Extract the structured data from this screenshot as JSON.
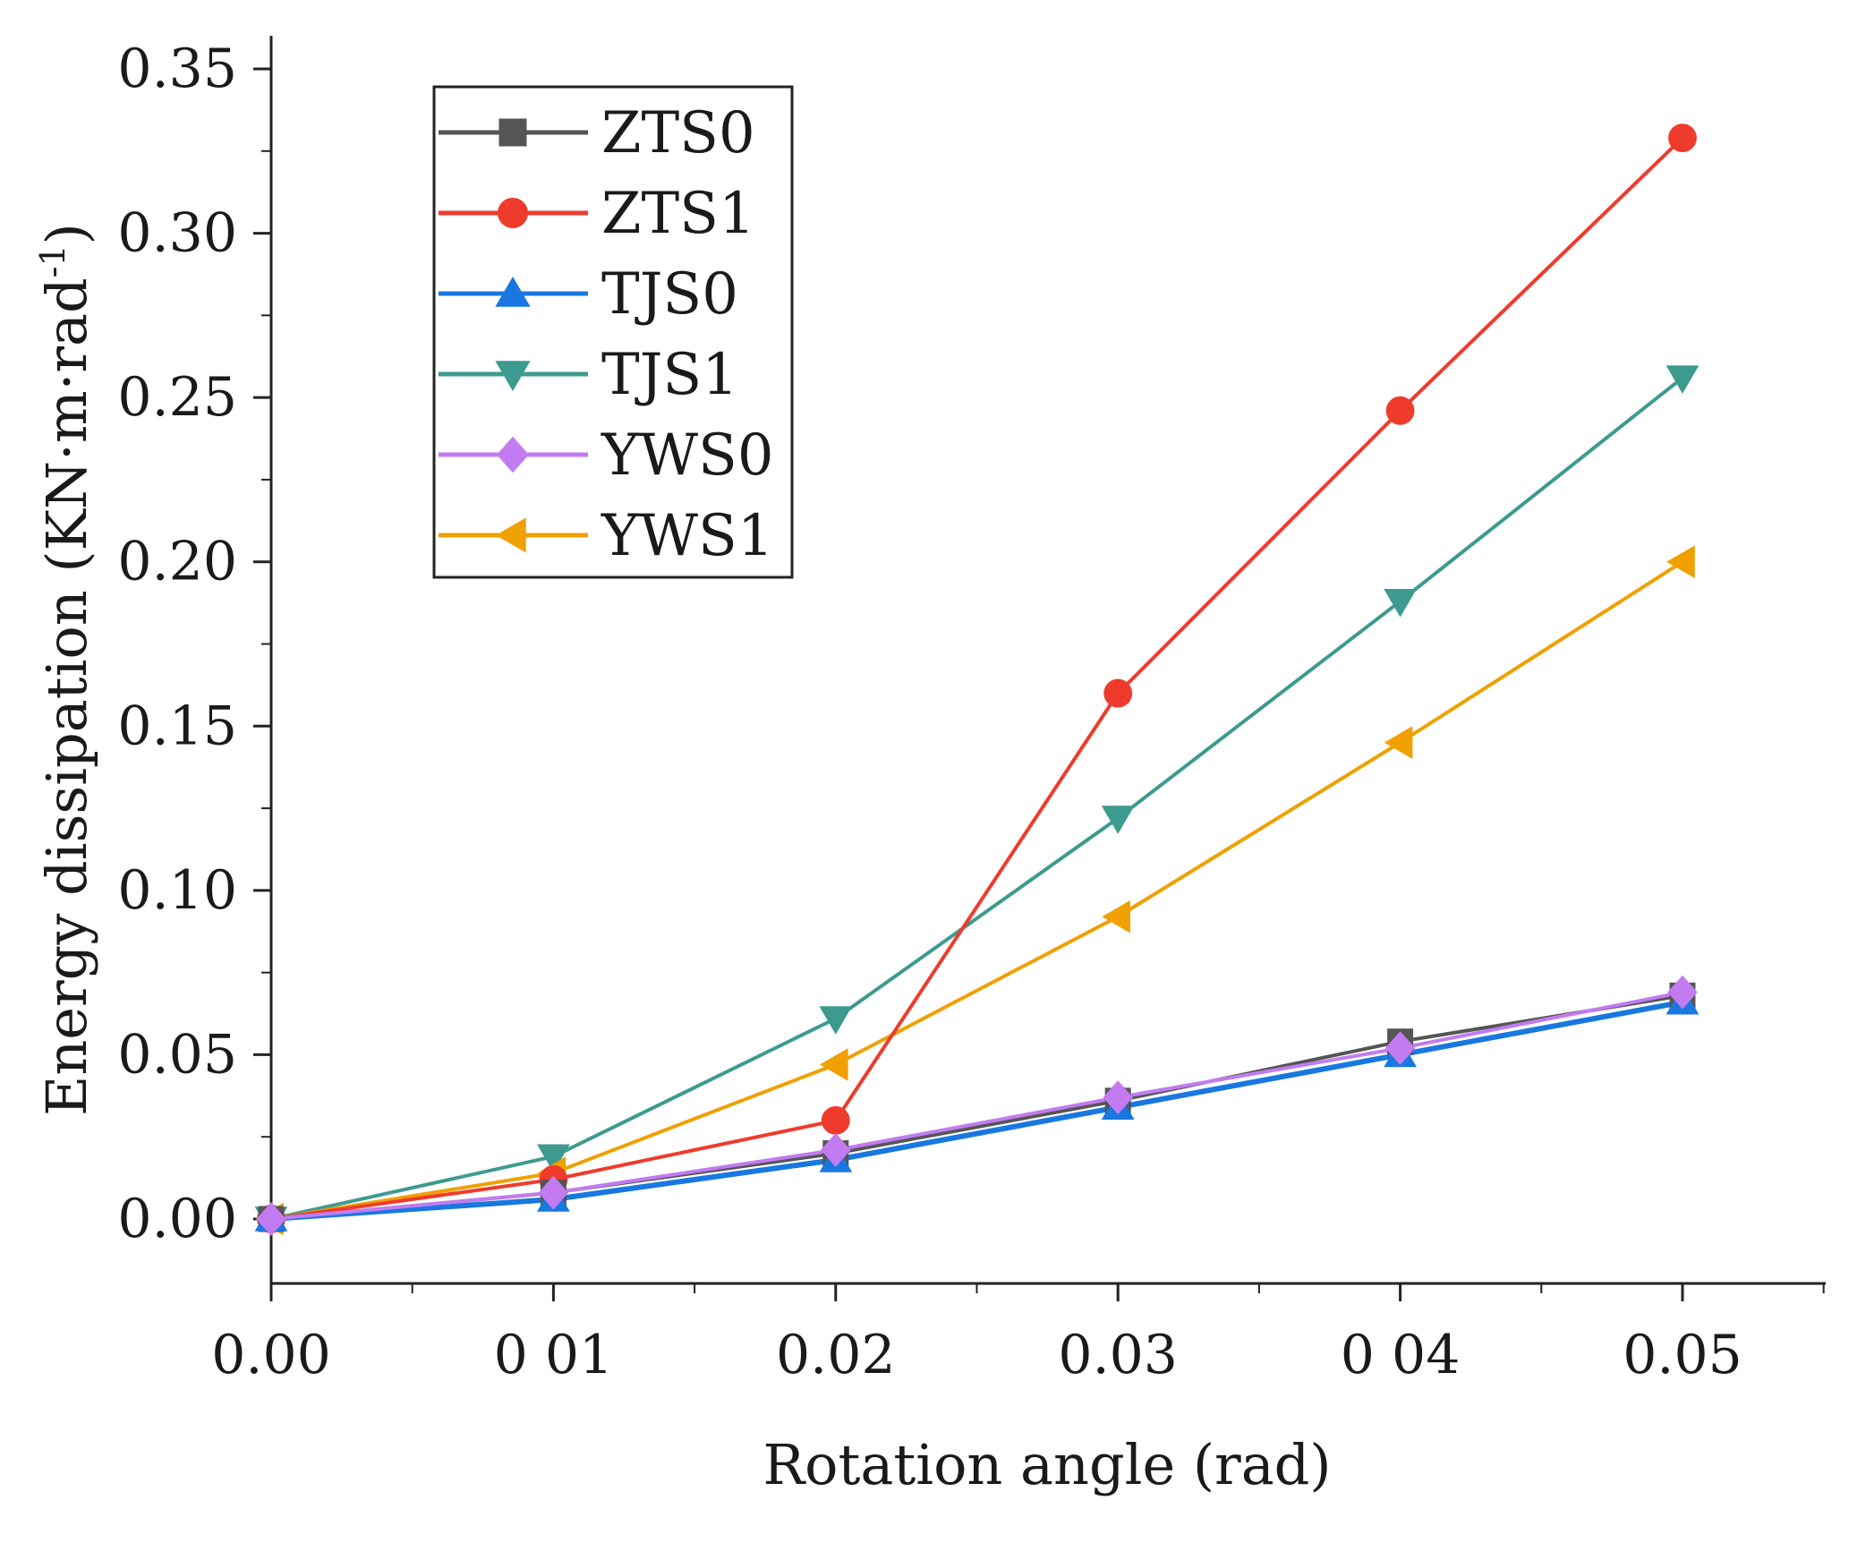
{
  "chart_data": {
    "type": "line",
    "xlabel": "Rotation angle (rad)",
    "ylabel": "Energy dissipation (KN·m·rad",
    "ylabel_superscript": "-1",
    "ylabel_close": ")",
    "x": [
      0.0,
      0.01,
      0.02,
      0.03,
      0.04,
      0.05
    ],
    "xlim": [
      0,
      0.0555
    ],
    "ylim": [
      -0.02,
      0.36
    ],
    "x_ticks": [
      0.0,
      0.01,
      0.02,
      0.03,
      0.04,
      0.05
    ],
    "x_tick_labels": [
      "0.00",
      "0 01",
      "0.02",
      "0.03",
      "0 04",
      "0.05"
    ],
    "y_ticks": [
      0.0,
      0.05,
      0.1,
      0.15,
      0.2,
      0.25,
      0.3,
      0.35
    ],
    "y_tick_labels": [
      "0.00",
      "0.05",
      "0.10",
      "0.15",
      "0.20",
      "0.25",
      "0.30",
      "0.35"
    ],
    "grid": false,
    "legend_position": "top-left",
    "series": [
      {
        "name": "ZTS0",
        "color": "#555555",
        "marker": "square",
        "values": [
          0.0,
          0.008,
          0.02,
          0.036,
          0.054,
          0.068
        ]
      },
      {
        "name": "ZTS1",
        "color": "#ef3b2c",
        "marker": "circle",
        "values": [
          0.0,
          0.012,
          0.03,
          0.16,
          0.246,
          0.329
        ]
      },
      {
        "name": "TJS0",
        "color": "#1878e0",
        "marker": "triangle-up",
        "values": [
          0.0,
          0.006,
          0.018,
          0.034,
          0.05,
          0.066
        ]
      },
      {
        "name": "TJS1",
        "color": "#3d9a8f",
        "marker": "triangle-down",
        "values": [
          0.0,
          0.019,
          0.061,
          0.122,
          0.188,
          0.256
        ]
      },
      {
        "name": "YWS0",
        "color": "#c27bf0",
        "marker": "diamond",
        "values": [
          0.0,
          0.008,
          0.021,
          0.037,
          0.052,
          0.069
        ]
      },
      {
        "name": "YWS1",
        "color": "#f0a000",
        "marker": "triangle-left",
        "values": [
          0.0,
          0.014,
          0.047,
          0.092,
          0.145,
          0.2
        ]
      }
    ]
  }
}
